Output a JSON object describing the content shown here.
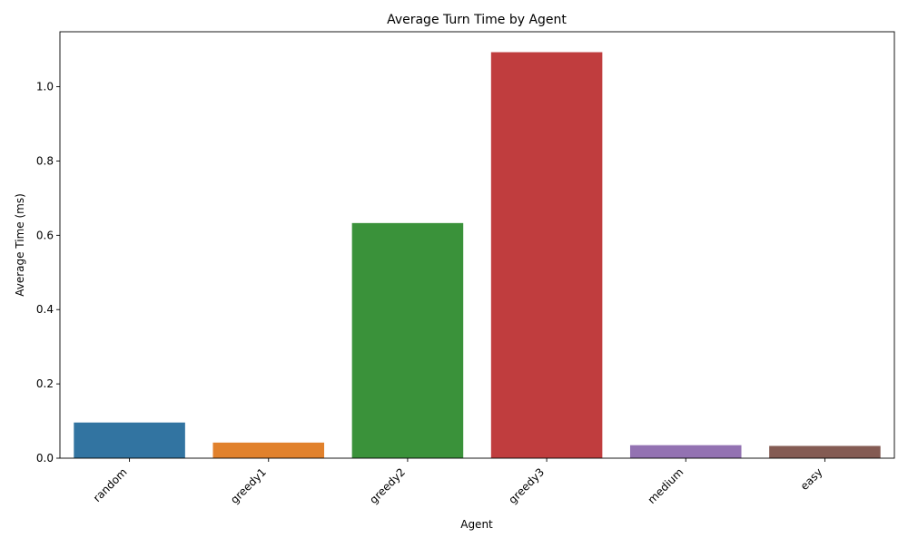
{
  "chart_data": {
    "type": "bar",
    "title": "Average Turn Time by Agent",
    "xlabel": "Agent",
    "ylabel": "Average Time (ms)",
    "categories": [
      "random",
      "greedy1",
      "greedy2",
      "greedy3",
      "medium",
      "easy"
    ],
    "values": [
      0.096,
      0.042,
      0.633,
      1.093,
      0.035,
      0.033
    ],
    "colors": [
      "#3274a1",
      "#e1812c",
      "#3a923a",
      "#c03d3e",
      "#9372b2",
      "#845b53"
    ],
    "ylim": [
      0,
      1.148
    ],
    "yticks": [
      "0.0",
      "0.2",
      "0.4",
      "0.6",
      "0.8",
      "1.0"
    ],
    "grid": false,
    "legend": "none"
  }
}
